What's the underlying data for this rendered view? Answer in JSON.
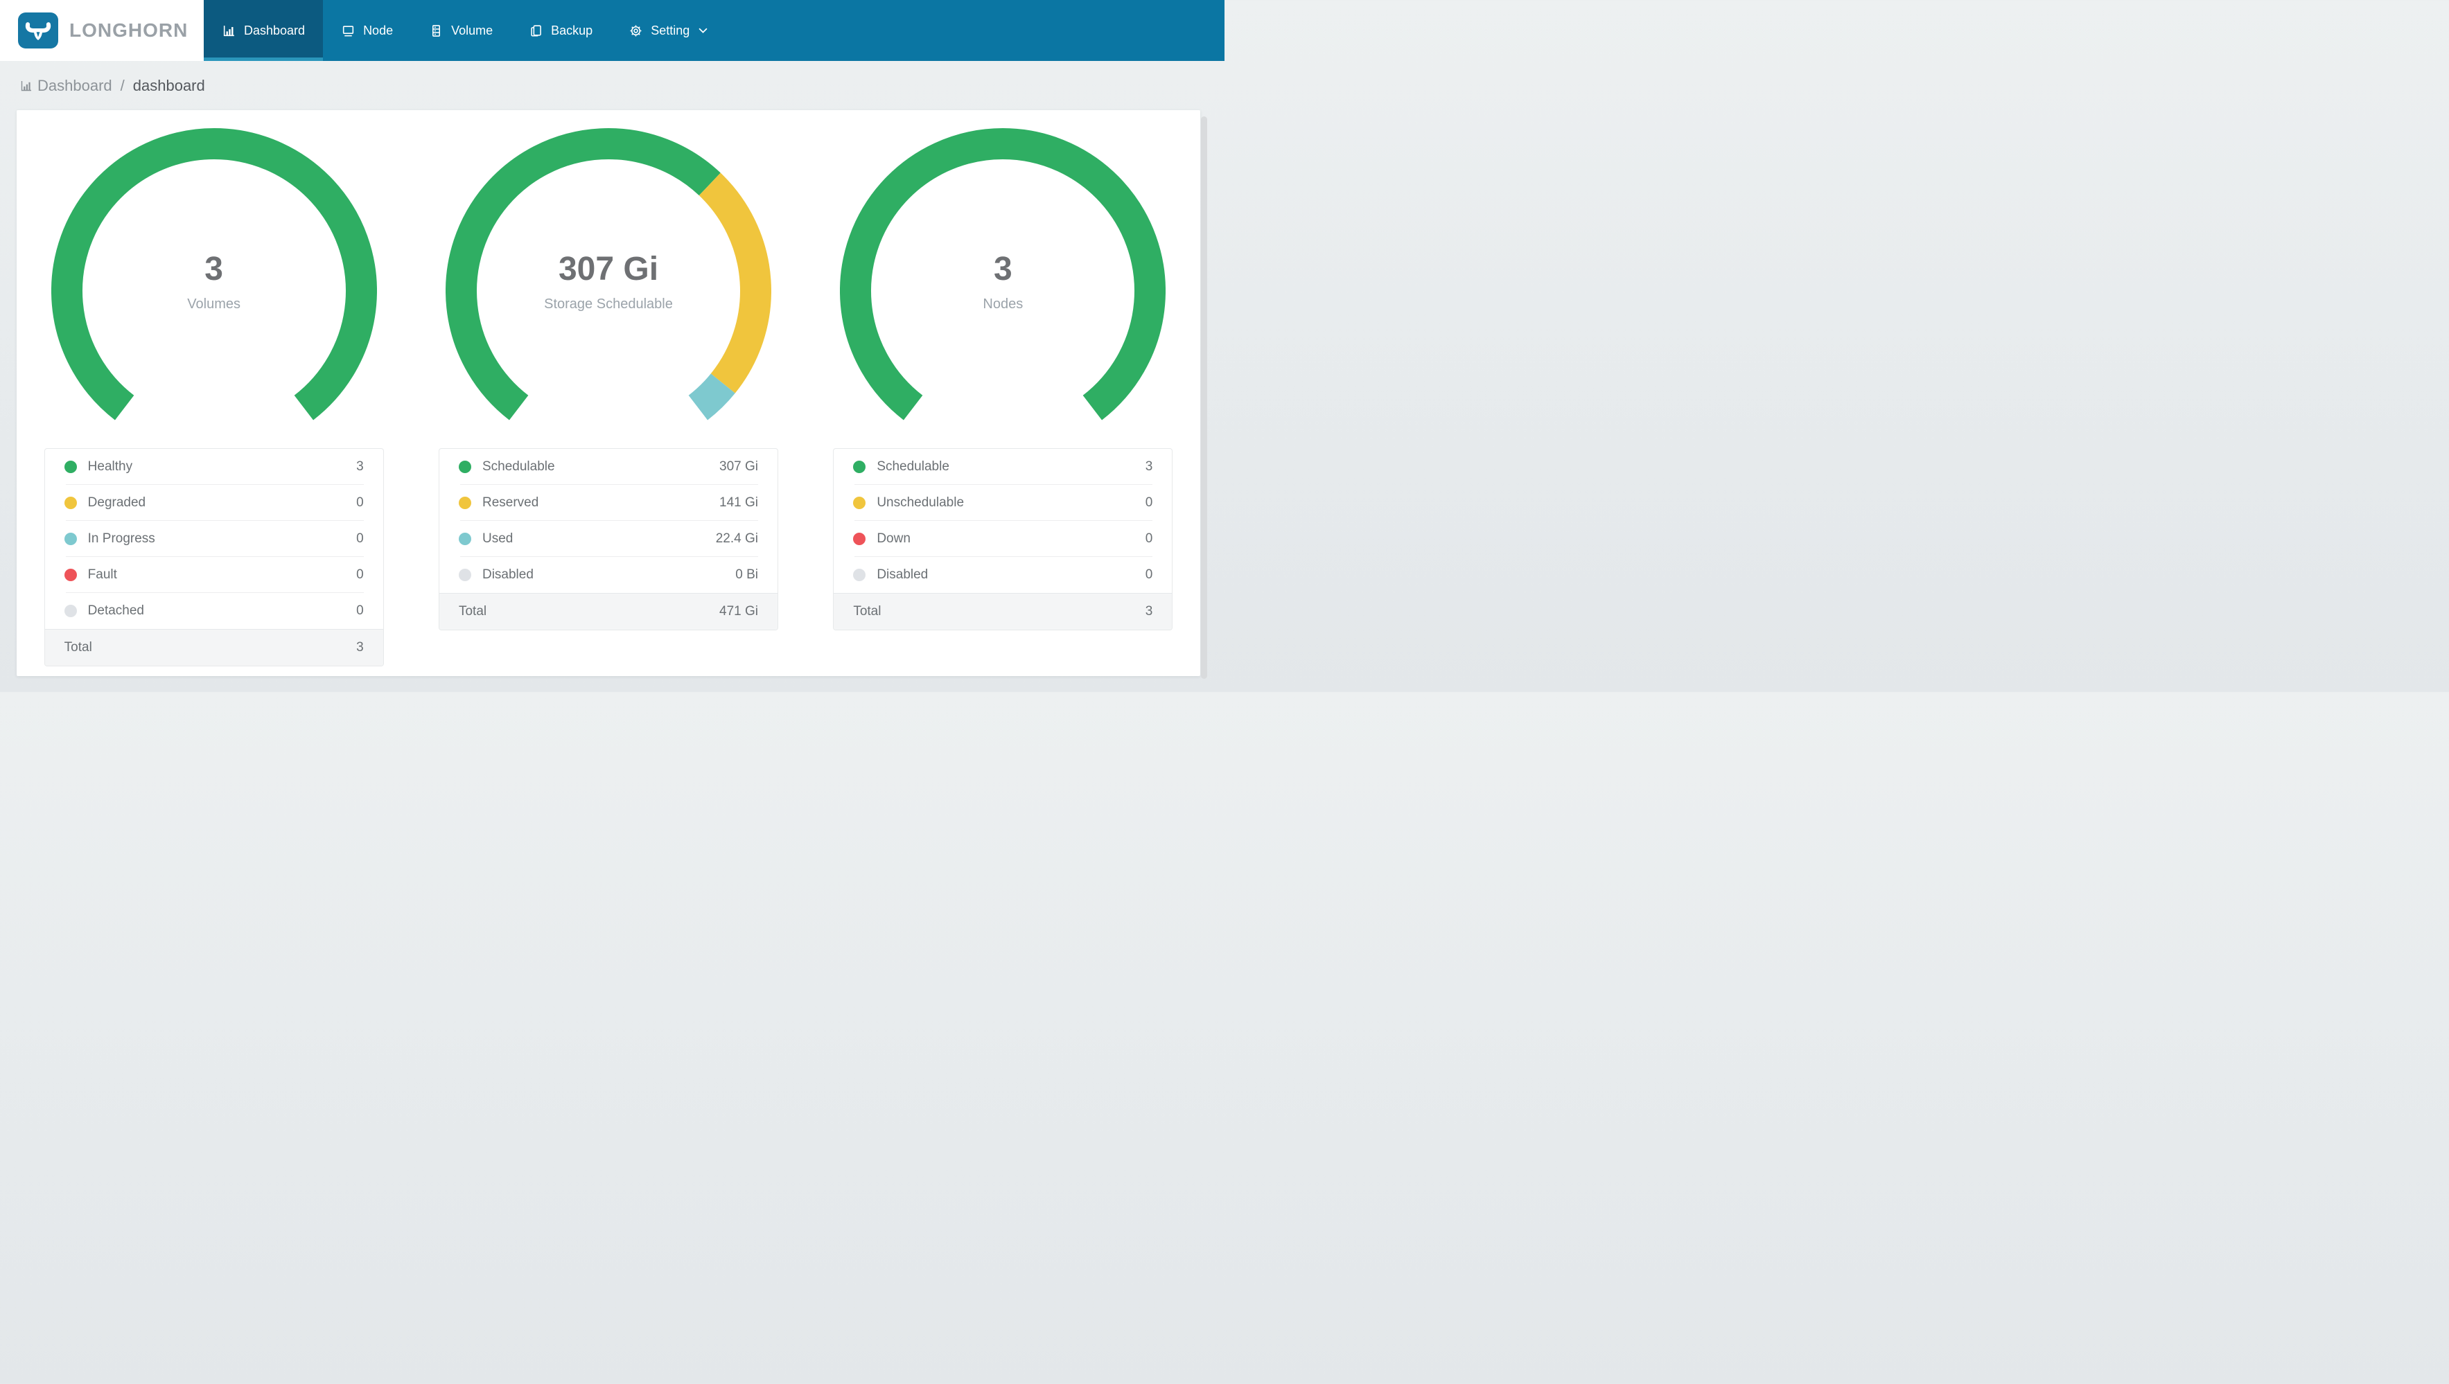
{
  "nav": {
    "brand": "LONGHORN",
    "items": [
      {
        "label": "Dashboard",
        "icon": "bar-chart-icon",
        "active": true
      },
      {
        "label": "Node",
        "icon": "node-icon",
        "active": false
      },
      {
        "label": "Volume",
        "icon": "volume-icon",
        "active": false
      },
      {
        "label": "Backup",
        "icon": "backup-icon",
        "active": false
      },
      {
        "label": "Setting",
        "icon": "gear-icon",
        "active": false,
        "has_dropdown": true
      }
    ]
  },
  "breadcrumb": {
    "section": "Dashboard",
    "separator": "/",
    "page": "dashboard"
  },
  "colors": {
    "green": "#2fae63",
    "yellow": "#f0c53d",
    "teal": "#7ec9cf",
    "red": "#ee5359",
    "gray": "#dfe2e6",
    "navbar": "#0b76a3",
    "navbar_active": "#0c5a80",
    "active_underline": "#2a96bb",
    "logo_blue": "#1577a4",
    "card_bg": "#ffffff",
    "total_row_bg": "#f4f5f6"
  },
  "chart_data": [
    {
      "type": "gauge-donut",
      "center_value": "3",
      "center_label": "Volumes",
      "start_deg": 217.5,
      "total_sweep_deg": 285,
      "segments": [
        {
          "name": "Healthy",
          "value": 3,
          "color": "#2fae63"
        },
        {
          "name": "Degraded",
          "value": 0,
          "color": "#f0c53d"
        },
        {
          "name": "In Progress",
          "value": 0,
          "color": "#7ec9cf"
        },
        {
          "name": "Fault",
          "value": 0,
          "color": "#ee5359"
        },
        {
          "name": "Detached",
          "value": 0,
          "color": "#dfe2e6"
        }
      ],
      "legend": [
        {
          "label": "Healthy",
          "value": "3",
          "color": "#2fae63"
        },
        {
          "label": "Degraded",
          "value": "0",
          "color": "#f0c53d"
        },
        {
          "label": "In Progress",
          "value": "0",
          "color": "#7ec9cf"
        },
        {
          "label": "Fault",
          "value": "0",
          "color": "#ee5359"
        },
        {
          "label": "Detached",
          "value": "0",
          "color": "#dfe2e6"
        }
      ],
      "total": {
        "label": "Total",
        "value": "3"
      }
    },
    {
      "type": "gauge-donut",
      "center_value": "307 Gi",
      "center_label": "Storage Schedulable",
      "start_deg": 217.5,
      "total_sweep_deg": 285,
      "segments": [
        {
          "name": "Schedulable",
          "value": 307,
          "color": "#2fae63"
        },
        {
          "name": "Reserved",
          "value": 141,
          "color": "#f0c53d"
        },
        {
          "name": "Used",
          "value": 22.4,
          "color": "#7ec9cf"
        },
        {
          "name": "Disabled",
          "value": 0,
          "color": "#dfe2e6"
        }
      ],
      "legend": [
        {
          "label": "Schedulable",
          "value": "307 Gi",
          "color": "#2fae63"
        },
        {
          "label": "Reserved",
          "value": "141 Gi",
          "color": "#f0c53d"
        },
        {
          "label": "Used",
          "value": "22.4 Gi",
          "color": "#7ec9cf"
        },
        {
          "label": "Disabled",
          "value": "0 Bi",
          "color": "#dfe2e6"
        }
      ],
      "total": {
        "label": "Total",
        "value": "471 Gi"
      }
    },
    {
      "type": "gauge-donut",
      "center_value": "3",
      "center_label": "Nodes",
      "start_deg": 217.5,
      "total_sweep_deg": 285,
      "segments": [
        {
          "name": "Schedulable",
          "value": 3,
          "color": "#2fae63"
        },
        {
          "name": "Unschedulable",
          "value": 0,
          "color": "#f0c53d"
        },
        {
          "name": "Down",
          "value": 0,
          "color": "#ee5359"
        },
        {
          "name": "Disabled",
          "value": 0,
          "color": "#dfe2e6"
        }
      ],
      "legend": [
        {
          "label": "Schedulable",
          "value": "3",
          "color": "#2fae63"
        },
        {
          "label": "Unschedulable",
          "value": "0",
          "color": "#f0c53d"
        },
        {
          "label": "Down",
          "value": "0",
          "color": "#ee5359"
        },
        {
          "label": "Disabled",
          "value": "0",
          "color": "#dfe2e6"
        }
      ],
      "total": {
        "label": "Total",
        "value": "3"
      }
    }
  ]
}
